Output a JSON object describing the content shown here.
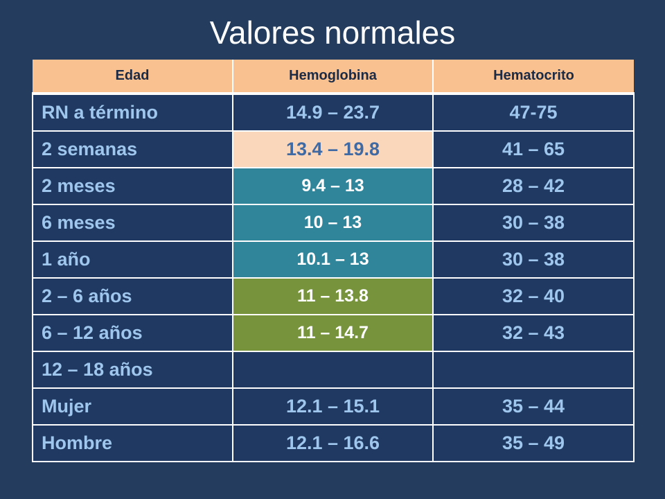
{
  "title": "Valores normales",
  "table": {
    "headers": [
      "Edad",
      "Hemoglobina",
      "Hematocrito"
    ],
    "rows": [
      {
        "edad": "RN a término",
        "hemoglobina": "14.9 – 23.7",
        "hematocrito": "47-75"
      },
      {
        "edad": "2 semanas",
        "hemoglobina": "13.4 – 19.8",
        "hematocrito": "41 – 65"
      },
      {
        "edad": "2 meses",
        "hemoglobina": "9.4 – 13",
        "hematocrito": "28 – 42"
      },
      {
        "edad": "6 meses",
        "hemoglobina": "10 – 13",
        "hematocrito": "30 – 38"
      },
      {
        "edad": "1 año",
        "hemoglobina": "10.1 – 13",
        "hematocrito": "30 – 38"
      },
      {
        "edad": "2 – 6 años",
        "hemoglobina": "11 – 13.8",
        "hematocrito": "32 – 40"
      },
      {
        "edad": "6 – 12 años",
        "hemoglobina": "11 – 14.7",
        "hematocrito": "32 – 43"
      },
      {
        "edad": "12 – 18 años",
        "hemoglobina": "",
        "hematocrito": ""
      },
      {
        "edad": "Mujer",
        "hemoglobina": "12.1 – 15.1",
        "hematocrito": "35 – 44"
      },
      {
        "edad": "Hombre",
        "hemoglobina": "12.1 – 16.6",
        "hematocrito": "35 – 49"
      }
    ]
  },
  "colors": {
    "background": "#243d5e",
    "header_fill": "#f9c190",
    "cell_fill": "#1f3963",
    "cell_text": "#9fc6ec",
    "highlight_peach": "#fad6bb",
    "highlight_teal": "#31859b",
    "highlight_green": "#77933c"
  }
}
